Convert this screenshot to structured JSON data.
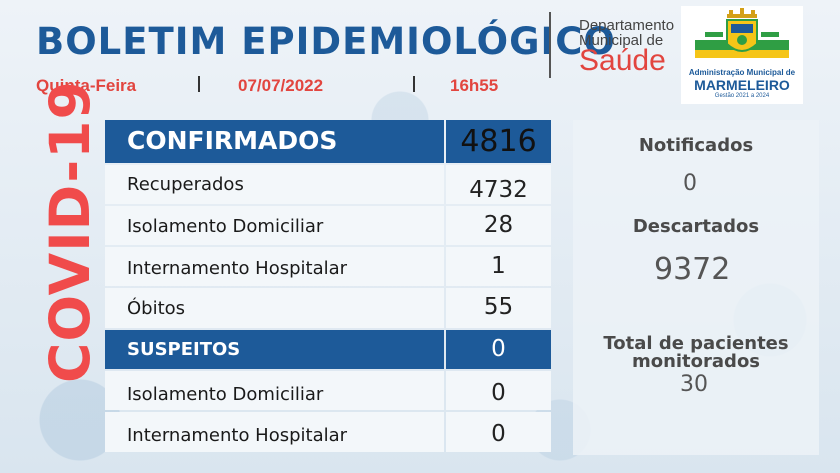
{
  "header": {
    "title": "BOLETIM EPIDEMIOLÓGICO",
    "weekday": "Quinta-Feira",
    "date": "07/07/2022",
    "time": "16h55"
  },
  "department": {
    "line1": "Departamento",
    "line2": "Municipal de",
    "name": "Saúde"
  },
  "logo": {
    "line1": "Administração Municipal de",
    "line2": "MARMELEIRO",
    "line3": "Gestão 2021 a 2024"
  },
  "side_title": "COVID-19",
  "confirmed": {
    "label": "CONFIRMADOS",
    "value": "4816",
    "rows": [
      {
        "label": "Recuperados",
        "value": "4732"
      },
      {
        "label": "Isolamento Domiciliar",
        "value": "28"
      },
      {
        "label": "Internamento Hospitalar",
        "value": "1"
      },
      {
        "label": "Óbitos",
        "value": "55"
      }
    ]
  },
  "suspected": {
    "label": "SUSPEITOS",
    "value": "0",
    "rows": [
      {
        "label": "Isolamento Domiciliar",
        "value": "0"
      },
      {
        "label": "Internamento Hospitalar",
        "value": "0"
      }
    ]
  },
  "panel": {
    "notified_label": "Notificados",
    "notified_value": "0",
    "discarded_label": "Descartados",
    "discarded_value": "9372",
    "monitored_label_1": "Total de pacientes",
    "monitored_label_2": "monitorados",
    "monitored_value": "30"
  },
  "colors": {
    "primary_blue": "#1d5a99",
    "accent_red": "#e2453f",
    "covid_red": "#f04b4b"
  }
}
